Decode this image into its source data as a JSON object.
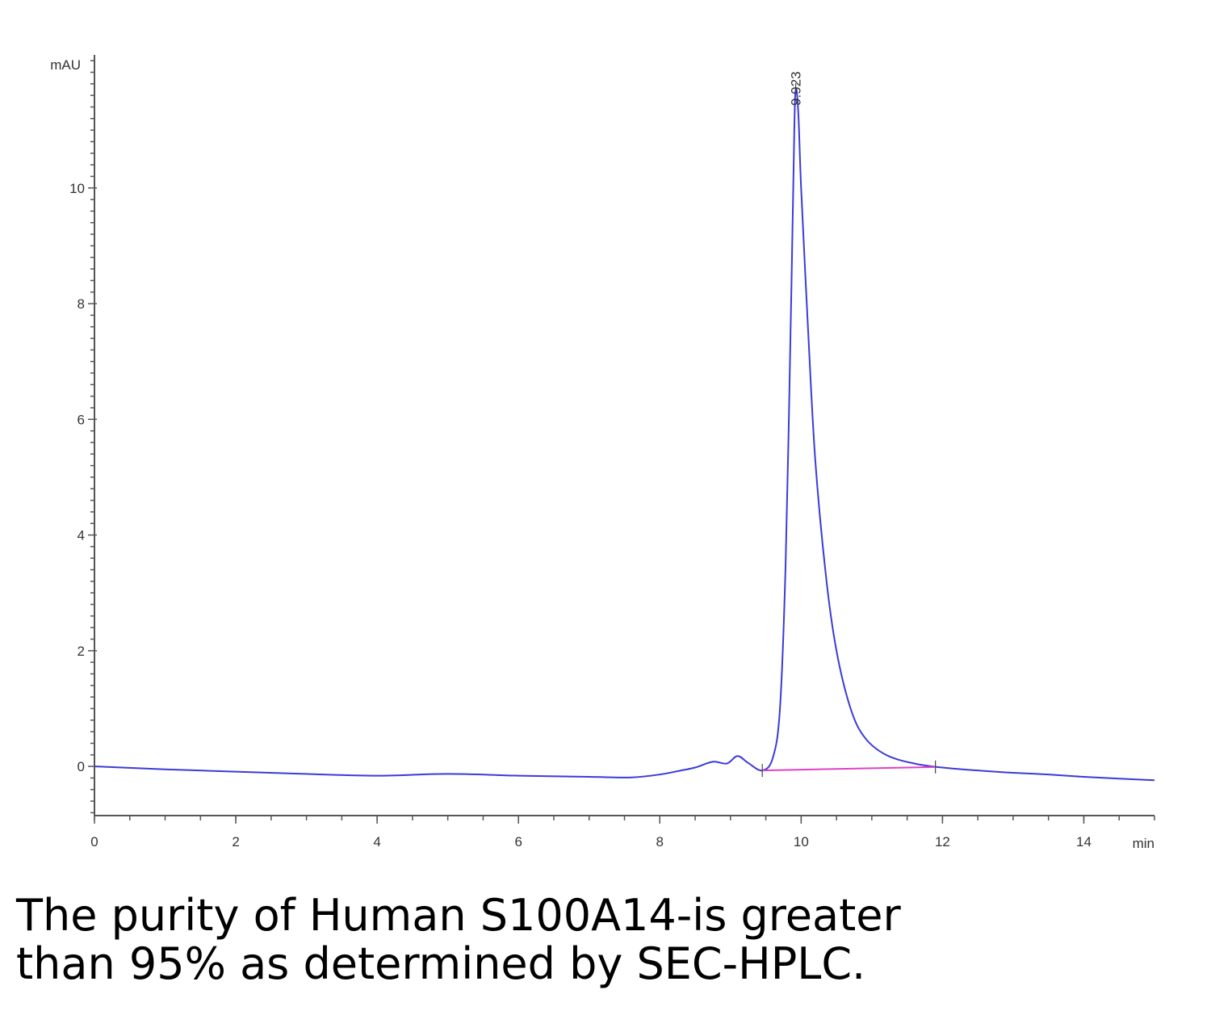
{
  "chart_data": {
    "type": "line",
    "ylabel": "mAU",
    "xlabel": "min",
    "xlim": [
      0,
      15
    ],
    "ylim": [
      -0.85,
      12.3
    ],
    "x_ticks": [
      0,
      2,
      4,
      6,
      8,
      10,
      12,
      14
    ],
    "y_ticks": [
      0,
      2,
      4,
      6,
      8,
      10
    ],
    "grid": false,
    "series": [
      {
        "color": "#3b3bd6",
        "x": [
          0,
          1,
          2,
          3,
          4,
          5,
          6,
          7,
          7.6,
          8.0,
          8.3,
          8.5,
          8.75,
          8.95,
          9.1,
          9.25,
          9.45,
          9.6,
          9.7,
          9.78,
          9.85,
          9.9,
          9.923,
          9.96,
          10.0,
          10.1,
          10.2,
          10.35,
          10.5,
          10.7,
          10.9,
          11.2,
          11.6,
          12.0,
          12.5,
          13.0,
          13.5,
          14.0,
          14.5,
          15.0
        ],
        "values": [
          0.0,
          -0.05,
          -0.09,
          -0.13,
          -0.16,
          -0.13,
          -0.16,
          -0.18,
          -0.19,
          -0.14,
          -0.07,
          -0.02,
          0.08,
          0.05,
          0.18,
          0.06,
          -0.07,
          0.15,
          1.0,
          3.5,
          7.5,
          10.8,
          11.7,
          11.3,
          10.0,
          7.5,
          5.3,
          3.3,
          2.0,
          1.0,
          0.5,
          0.2,
          0.05,
          -0.02,
          -0.07,
          -0.11,
          -0.14,
          -0.18,
          -0.21,
          -0.24
        ]
      }
    ],
    "baseline": {
      "color": "#e040c8",
      "x": [
        9.45,
        11.9
      ],
      "values": [
        -0.07,
        -0.01
      ]
    },
    "peak_annotations": [
      {
        "x": 9.923,
        "y": 11.7,
        "label": "9.923"
      }
    ]
  },
  "caption": {
    "line1": "The purity of Human S100A14-is greater",
    "line2": "than 95% as determined by SEC-HPLC."
  }
}
